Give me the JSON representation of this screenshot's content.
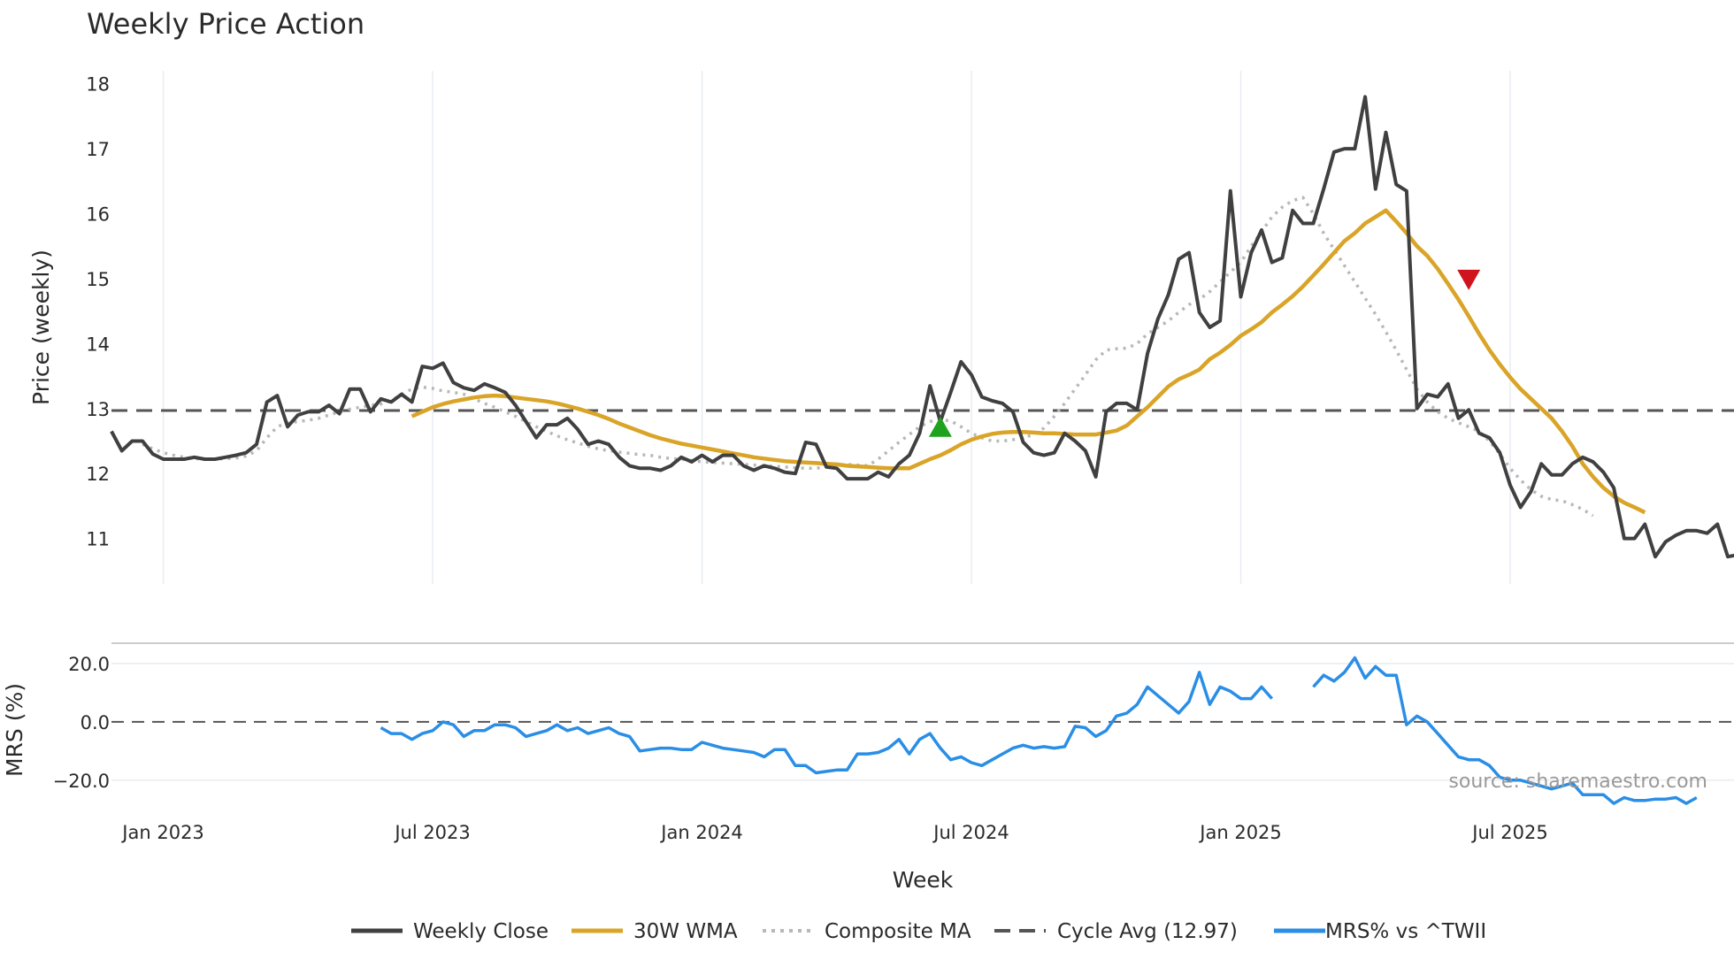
{
  "chart_data": {
    "type": "line",
    "title": "Weekly Price Action",
    "xlabel": "Week",
    "x_ticks": [
      "Jan 2023",
      "Jul 2023",
      "Jan 2024",
      "Jul 2024",
      "Jan 2025",
      "Jul 2025"
    ],
    "x_tick_weeks": [
      5,
      31,
      57,
      83,
      109,
      135
    ],
    "price_panel": {
      "ylabel": "Price (weekly)",
      "ylim": [
        10.3,
        18.2
      ],
      "y_ticks": [
        "11",
        "12",
        "13",
        "14",
        "15",
        "16",
        "17",
        "18"
      ],
      "y_tick_values": [
        11,
        12,
        13,
        14,
        15,
        16,
        17,
        18
      ],
      "cycle_avg": 12.97
    },
    "mrs_panel": {
      "ylabel": "MRS (%)",
      "ylim": [
        -31,
        27
      ],
      "y_ticks": [
        "20.0",
        "0.0",
        "−20.0"
      ],
      "y_tick_values": [
        20,
        0,
        -20
      ],
      "zero_line": 0
    },
    "series": [
      {
        "name": "Weekly Close",
        "color": "#404040",
        "style": "solid",
        "start_week": 0,
        "values": [
          12.65,
          12.35,
          12.5,
          12.5,
          12.3,
          12.22,
          12.22,
          12.22,
          12.25,
          12.22,
          12.22,
          12.25,
          12.28,
          12.32,
          12.45,
          13.1,
          13.2,
          12.72,
          12.9,
          12.95,
          12.95,
          13.05,
          12.92,
          13.3,
          13.3,
          12.95,
          13.15,
          13.1,
          13.22,
          13.1,
          13.65,
          13.62,
          13.7,
          13.4,
          13.32,
          13.28,
          13.38,
          13.32,
          13.25,
          13.05,
          12.8,
          12.55,
          12.75,
          12.75,
          12.85,
          12.68,
          12.45,
          12.5,
          12.45,
          12.25,
          12.12,
          12.08,
          12.08,
          12.05,
          12.12,
          12.25,
          12.18,
          12.28,
          12.18,
          12.28,
          12.28,
          12.12,
          12.05,
          12.12,
          12.08,
          12.02,
          12.0,
          12.48,
          12.45,
          12.1,
          12.08,
          11.92,
          11.92,
          11.92,
          12.02,
          11.95,
          12.15,
          12.28,
          12.62,
          13.35,
          12.8,
          13.25,
          13.72,
          13.52,
          13.18,
          13.12,
          13.08,
          12.95,
          12.48,
          12.32,
          12.28,
          12.32,
          12.62,
          12.5,
          12.35,
          11.95,
          12.95,
          13.08,
          13.08,
          12.98,
          13.85,
          14.38,
          14.75,
          15.3,
          15.4,
          14.48,
          14.25,
          14.35,
          16.35,
          14.72,
          15.4,
          15.75,
          15.25,
          15.32,
          16.05,
          15.85,
          15.85,
          16.38,
          16.95,
          17.0,
          17.0,
          17.8,
          16.38,
          17.25,
          16.45,
          16.35,
          13.0,
          13.22,
          13.18,
          13.38,
          12.85,
          12.98,
          12.62,
          12.55,
          12.32,
          11.82,
          11.48,
          11.72,
          12.15,
          11.98,
          11.98,
          12.15,
          12.25,
          12.18,
          12.02,
          11.78,
          11.0,
          11.0,
          11.22,
          10.72,
          10.95,
          11.05,
          11.12,
          11.12,
          11.08,
          11.22,
          10.72,
          10.75
        ]
      },
      {
        "name": "30W WMA",
        "color": "#d9a427",
        "style": "solid",
        "start_week": 29,
        "values": [
          12.88,
          12.95,
          13.02,
          13.07,
          13.11,
          13.14,
          13.17,
          13.19,
          13.2,
          13.19,
          13.17,
          13.15,
          13.13,
          13.11,
          13.08,
          13.04,
          13.0,
          12.95,
          12.9,
          12.84,
          12.77,
          12.71,
          12.65,
          12.59,
          12.54,
          12.5,
          12.46,
          12.43,
          12.4,
          12.37,
          12.34,
          12.31,
          12.28,
          12.25,
          12.23,
          12.21,
          12.19,
          12.18,
          12.17,
          12.16,
          12.15,
          12.14,
          12.12,
          12.11,
          12.1,
          12.09,
          12.08,
          12.08,
          12.08,
          12.15,
          12.22,
          12.28,
          12.36,
          12.45,
          12.52,
          12.57,
          12.61,
          12.63,
          12.64,
          12.64,
          12.63,
          12.62,
          12.62,
          12.61,
          12.6,
          12.6,
          12.6,
          12.63,
          12.66,
          12.74,
          12.88,
          13.02,
          13.18,
          13.34,
          13.45,
          13.52,
          13.6,
          13.76,
          13.86,
          13.98,
          14.12,
          14.22,
          14.33,
          14.48,
          14.6,
          14.73,
          14.88,
          15.05,
          15.22,
          15.4,
          15.58,
          15.7,
          15.85,
          15.95,
          16.05,
          15.88,
          15.7,
          15.5,
          15.35,
          15.15,
          14.92,
          14.68,
          14.42,
          14.15,
          13.9,
          13.68,
          13.48,
          13.3,
          13.15,
          13.0,
          12.85,
          12.65,
          12.42,
          12.15,
          11.95,
          11.78,
          11.65,
          11.55,
          11.48,
          11.4
        ]
      },
      {
        "name": "Composite MA",
        "color": "#b8b8b8",
        "style": "dotted",
        "start_week": 3,
        "values": [
          12.45,
          12.38,
          12.32,
          12.28,
          12.25,
          12.23,
          12.22,
          12.22,
          12.23,
          12.24,
          12.27,
          12.35,
          12.55,
          12.72,
          12.78,
          12.8,
          12.82,
          12.85,
          12.9,
          12.95,
          12.99,
          13.02,
          13.05,
          13.07,
          13.12,
          13.22,
          13.3,
          13.33,
          13.31,
          13.27,
          13.25,
          13.22,
          13.15,
          13.08,
          13.02,
          12.95,
          12.88,
          12.8,
          12.72,
          12.65,
          12.58,
          12.52,
          12.47,
          12.42,
          12.38,
          12.35,
          12.33,
          12.31,
          12.29,
          12.28,
          12.25,
          12.23,
          12.22,
          12.2,
          12.18,
          12.17,
          12.16,
          12.15,
          12.14,
          12.13,
          12.12,
          12.11,
          12.1,
          12.09,
          12.08,
          12.08,
          12.1,
          12.12,
          12.14,
          12.13,
          12.12,
          12.22,
          12.35,
          12.48,
          12.6,
          12.72,
          12.8,
          12.83,
          12.81,
          12.72,
          12.62,
          12.55,
          12.5,
          12.5,
          12.52,
          12.55,
          12.6,
          12.7,
          12.88,
          13.08,
          13.3,
          13.52,
          13.75,
          13.9,
          13.92,
          13.93,
          14.0,
          14.15,
          14.25,
          14.35,
          14.48,
          14.6,
          14.68,
          14.8,
          14.95,
          15.1,
          15.25,
          15.5,
          15.72,
          15.95,
          16.1,
          16.2,
          16.25,
          16.0,
          15.7,
          15.45,
          15.2,
          14.95,
          14.7,
          14.45,
          14.18,
          13.9,
          13.6,
          13.3,
          13.1,
          12.95,
          12.85,
          12.78,
          12.72,
          12.65,
          12.5,
          12.3,
          12.08,
          11.9,
          11.75,
          11.65,
          11.6,
          11.58,
          11.52,
          11.45,
          11.35
        ]
      },
      {
        "name": "Cycle Avg (12.97)",
        "color": "#555555",
        "style": "dashed",
        "value": 12.97
      },
      {
        "name": "MRS% vs ^TWII",
        "color": "#2a8ee6",
        "style": "solid",
        "start_week": 26,
        "segments": [
          {
            "start_week": 26,
            "values": [
              -2,
              -4,
              -4,
              -6,
              -4,
              -3,
              0,
              -1,
              -5,
              -3,
              -3,
              -1,
              -1,
              -2,
              -5,
              -4,
              -3,
              -1,
              -3,
              -2,
              -4,
              -3,
              -2,
              -4,
              -5,
              -10,
              -9.5,
              -9,
              -9,
              -9.5,
              -9.5,
              -7,
              -8,
              -9,
              -9.5,
              -10,
              -10.5,
              -12,
              -9.5,
              -9.5,
              -15,
              -15,
              -17.5,
              -17,
              -16.5,
              -16.5,
              -11,
              -11,
              -10.5,
              -9,
              -6,
              -11,
              -6,
              -4,
              -9,
              -13,
              -12,
              -14,
              -15,
              -13,
              -11,
              -9,
              -8,
              -9,
              -8.5,
              -9,
              -8.5,
              -1.5,
              -2,
              -5,
              -3,
              2,
              3,
              6,
              12,
              9,
              6,
              3,
              7,
              17,
              6,
              12,
              10.5,
              8,
              8,
              12,
              8
            ]
          },
          {
            "start_week": 116,
            "values": [
              12,
              16,
              14,
              17,
              22,
              15,
              19,
              16,
              16,
              -1,
              2,
              0,
              -4,
              -8,
              -12,
              -13,
              -13,
              -15,
              -19,
              -20,
              -20,
              -21,
              -22,
              -23,
              -22,
              -21,
              -25,
              -25,
              -25,
              -28,
              -26,
              -27,
              -27,
              -26.5,
              -26.5,
              -26,
              -28,
              -26
            ]
          }
        ]
      }
    ],
    "signals": [
      {
        "type": "buy",
        "shape": "triangle-up",
        "color": "#1fa31f",
        "week": 80,
        "value": 12.7
      },
      {
        "type": "sell",
        "shape": "triangle-down",
        "color": "#d0141e",
        "week": 131,
        "value": 15.0
      }
    ],
    "legend": [
      "Weekly Close",
      "30W WMA",
      "Composite MA",
      "Cycle Avg (12.97)",
      "MRS% vs ^TWII"
    ],
    "legend_placement": "bottom-center",
    "source_note": "source: sharemaestro.com"
  }
}
